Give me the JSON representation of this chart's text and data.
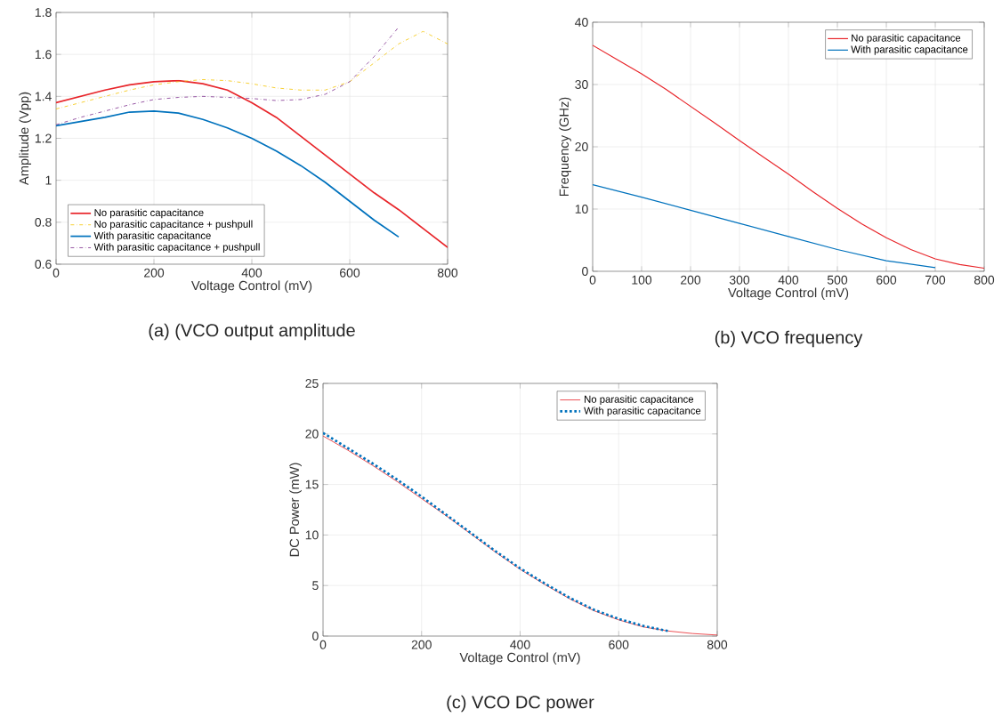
{
  "chart_data": [
    {
      "type": "line",
      "title": "(a) (VCO output amplitude",
      "xlabel": "Voltage Control (mV)",
      "ylabel": "Amplitude (Vpp)",
      "xlim": [
        0,
        800
      ],
      "xticks": [
        0,
        200,
        400,
        600,
        800
      ],
      "ylim": [
        0.6,
        1.8
      ],
      "yticks": [
        0.6,
        0.8,
        1,
        1.2,
        1.4,
        1.6,
        1.8
      ],
      "grid": true,
      "legend": "bottom left",
      "x": [
        0,
        50,
        100,
        150,
        200,
        250,
        300,
        350,
        400,
        450,
        500,
        550,
        600,
        650,
        700,
        750,
        800
      ],
      "series": [
        {
          "name": "No parasitic capacitance",
          "color": "#e8262b",
          "line_style": "solid",
          "values": [
            1.37,
            1.4,
            1.43,
            1.455,
            1.47,
            1.475,
            1.46,
            1.43,
            1.37,
            1.3,
            1.21,
            1.12,
            1.03,
            0.94,
            0.86,
            0.77,
            0.68
          ]
        },
        {
          "name": "No parasitic capacitance + pushpull",
          "color": "#f5c400",
          "line_style": "dashdot",
          "values": [
            1.34,
            1.37,
            1.4,
            1.43,
            1.455,
            1.47,
            1.48,
            1.475,
            1.46,
            1.44,
            1.43,
            1.43,
            1.47,
            1.56,
            1.65,
            1.71,
            1.65
          ]
        },
        {
          "name": "With parasitic capacitance",
          "color": "#0072bd",
          "line_style": "solid",
          "x": [
            0,
            50,
            100,
            150,
            200,
            250,
            300,
            350,
            400,
            450,
            500,
            550,
            600,
            650,
            700
          ],
          "values": [
            1.26,
            1.28,
            1.3,
            1.325,
            1.33,
            1.32,
            1.29,
            1.25,
            1.2,
            1.14,
            1.07,
            0.99,
            0.9,
            0.81,
            0.73
          ]
        },
        {
          "name": "With parasitic capacitance + pushpull",
          "color": "#7e2f8e",
          "line_style": "dashdot",
          "x": [
            0,
            50,
            100,
            150,
            200,
            250,
            300,
            350,
            400,
            450,
            500,
            550,
            600,
            650,
            700
          ],
          "values": [
            1.265,
            1.3,
            1.33,
            1.36,
            1.385,
            1.395,
            1.4,
            1.395,
            1.39,
            1.38,
            1.385,
            1.41,
            1.47,
            1.59,
            1.73
          ]
        }
      ]
    },
    {
      "type": "line",
      "title": "(b) VCO frequency",
      "xlabel": "Voltage Control (mV)",
      "ylabel": "Frequency (GHz)",
      "xlim": [
        0,
        800
      ],
      "xticks": [
        0,
        100,
        200,
        300,
        400,
        500,
        600,
        700,
        800
      ],
      "ylim": [
        0,
        40
      ],
      "yticks": [
        0,
        10,
        20,
        30,
        40
      ],
      "grid": true,
      "legend": "top right",
      "x": [
        0,
        50,
        100,
        150,
        200,
        250,
        300,
        350,
        400,
        450,
        500,
        550,
        600,
        650,
        700,
        750,
        800
      ],
      "series": [
        {
          "name": "No parasitic capacitance",
          "color": "#e8262b",
          "line_style": "solid",
          "values": [
            36.3,
            34.0,
            31.7,
            29.2,
            26.5,
            23.8,
            21.0,
            18.3,
            15.6,
            12.8,
            10.1,
            7.6,
            5.4,
            3.5,
            2.0,
            1.1,
            0.5
          ]
        },
        {
          "name": "With parasitic capacitance",
          "color": "#0072bd",
          "line_style": "solid",
          "x": [
            0,
            100,
            200,
            300,
            400,
            500,
            600,
            700
          ],
          "values": [
            13.9,
            11.9,
            9.8,
            7.7,
            5.6,
            3.5,
            1.7,
            0.6
          ]
        }
      ]
    },
    {
      "type": "line",
      "title": "(c) VCO DC power",
      "xlabel": "Voltage Control (mV)",
      "ylabel": "DC Power (mW)",
      "xlim": [
        0,
        800
      ],
      "xticks": [
        0,
        200,
        400,
        600,
        800
      ],
      "ylim": [
        0,
        25
      ],
      "yticks": [
        0,
        5,
        10,
        15,
        20,
        25
      ],
      "grid": true,
      "legend": "top right",
      "x": [
        0,
        50,
        100,
        150,
        200,
        250,
        300,
        350,
        400,
        450,
        500,
        550,
        600,
        650,
        700,
        750,
        800
      ],
      "series": [
        {
          "name": "No parasitic capacitance",
          "color": "#e8262b",
          "line_style": "solid",
          "values": [
            19.8,
            18.4,
            16.9,
            15.3,
            13.6,
            11.9,
            10.1,
            8.3,
            6.6,
            5.1,
            3.7,
            2.5,
            1.6,
            0.9,
            0.5,
            0.25,
            0.1
          ]
        },
        {
          "name": "With parasitic capacitance",
          "color": "#0072bd",
          "line_style": "dotted",
          "x": [
            0,
            50,
            100,
            150,
            200,
            250,
            300,
            350,
            400,
            450,
            500,
            550,
            600,
            650,
            700
          ],
          "values": [
            20.1,
            18.6,
            17.1,
            15.5,
            13.8,
            12.0,
            10.2,
            8.4,
            6.7,
            5.2,
            3.8,
            2.6,
            1.7,
            1.0,
            0.5
          ]
        }
      ]
    }
  ]
}
